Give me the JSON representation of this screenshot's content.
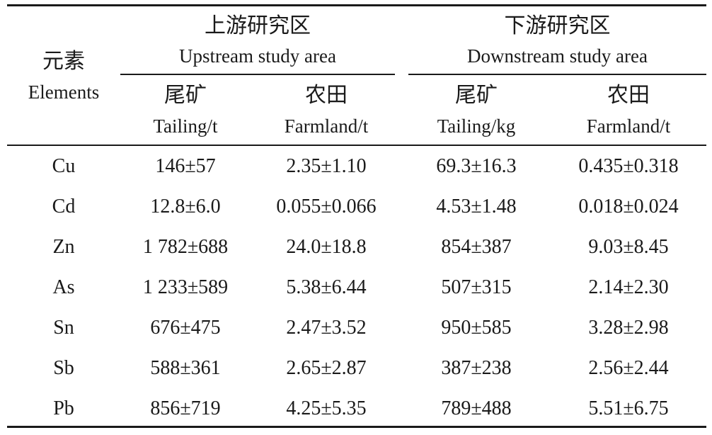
{
  "header": {
    "element_zh": "元素",
    "element_en": "Elements",
    "upstream_zh": "上游研究区",
    "upstream_en": "Upstream study area",
    "downstream_zh": "下游研究区",
    "downstream_en": "Downstream study area",
    "columns": [
      {
        "zh": "尾矿",
        "en": "Tailing/t"
      },
      {
        "zh": "农田",
        "en": "Farmland/t"
      },
      {
        "zh": "尾矿",
        "en": "Tailing/kg"
      },
      {
        "zh": "农田",
        "en": "Farmland/t"
      }
    ]
  },
  "rows": [
    {
      "element": "Cu",
      "values": [
        "146±57",
        "2.35±1.10",
        "69.3±16.3",
        "0.435±0.318"
      ]
    },
    {
      "element": "Cd",
      "values": [
        "12.8±6.0",
        "0.055±0.066",
        "4.53±1.48",
        "0.018±0.024"
      ]
    },
    {
      "element": "Zn",
      "values": [
        "1 782±688",
        "24.0±18.8",
        "854±387",
        "9.03±8.45"
      ]
    },
    {
      "element": "As",
      "values": [
        "1 233±589",
        "5.38±6.44",
        "507±315",
        "2.14±2.30"
      ]
    },
    {
      "element": "Sn",
      "values": [
        "676±475",
        "2.47±3.52",
        "950±585",
        "3.28±2.98"
      ]
    },
    {
      "element": "Sb",
      "values": [
        "588±361",
        "2.65±2.87",
        "387±238",
        "2.56±2.44"
      ]
    },
    {
      "element": "Pb",
      "values": [
        "856±719",
        "4.25±5.35",
        "789±488",
        "5.51±6.75"
      ]
    }
  ]
}
